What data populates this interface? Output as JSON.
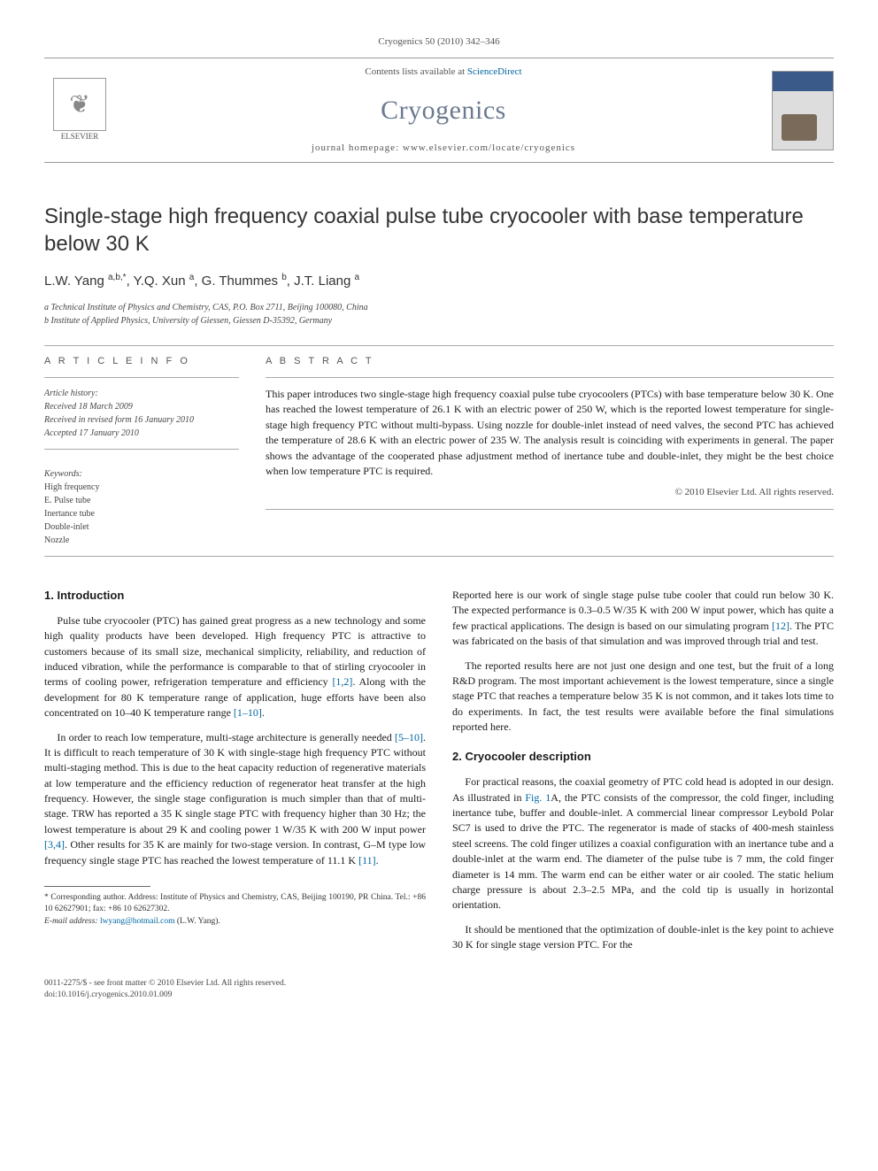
{
  "journal_ref": "Cryogenics 50 (2010) 342–346",
  "masthead": {
    "contents_prefix": "Contents lists available at ",
    "contents_link": "ScienceDirect",
    "journal_name": "Cryogenics",
    "homepage_label": "journal homepage: ",
    "homepage_url": "www.elsevier.com/locate/cryogenics",
    "publisher_name": "ELSEVIER"
  },
  "article": {
    "title": "Single-stage high frequency coaxial pulse tube cryocooler with base temperature below 30 K",
    "authors_html": "L.W. Yang <sup>a,b,*</sup>, Y.Q. Xun <sup>a</sup>, G. Thummes <sup>b</sup>, J.T. Liang <sup>a</sup>",
    "affiliations": [
      "a Technical Institute of Physics and Chemistry, CAS, P.O. Box 2711, Beijing 100080, China",
      "b Institute of Applied Physics, University of Giessen, Giessen D-35392, Germany"
    ]
  },
  "info": {
    "heading": "A R T I C L E   I N F O",
    "history_label": "Article history:",
    "received": "Received 18 March 2009",
    "revised": "Received in revised form 16 January 2010",
    "accepted": "Accepted 17 January 2010",
    "keywords_label": "Keywords:",
    "keywords": [
      "High frequency",
      "E. Pulse tube",
      "Inertance tube",
      "Double-inlet",
      "Nozzle"
    ]
  },
  "abstract": {
    "heading": "A B S T R A C T",
    "text": "This paper introduces two single-stage high frequency coaxial pulse tube cryocoolers (PTCs) with base temperature below 30 K. One has reached the lowest temperature of 26.1 K with an electric power of 250 W, which is the reported lowest temperature for single-stage high frequency PTC without multi-bypass. Using nozzle for double-inlet instead of need valves, the second PTC has achieved the temperature of 28.6 K with an electric power of 235 W. The analysis result is coinciding with experiments in general. The paper shows the advantage of the cooperated phase adjustment method of inertance tube and double-inlet, they might be the best choice when low temperature PTC is required.",
    "copyright": "© 2010 Elsevier Ltd. All rights reserved."
  },
  "body": {
    "left": {
      "section_num": "1.",
      "section_title": "Introduction",
      "p1": "Pulse tube cryocooler (PTC) has gained great progress as a new technology and some high quality products have been developed. High frequency PTC is attractive to customers because of its small size, mechanical simplicity, reliability, and reduction of induced vibration, while the performance is comparable to that of stirling cryocooler in terms of cooling power, refrigeration temperature and efficiency [1,2]. Along with the development for 80 K temperature range of application, huge efforts have been also concentrated on 10–40 K temperature range [1–10].",
      "p2": "In order to reach low temperature, multi-stage architecture is generally needed [5–10]. It is difficult to reach temperature of 30 K with single-stage high frequency PTC without multi-staging method. This is due to the heat capacity reduction of regenerative materials at low temperature and the efficiency reduction of regenerator heat transfer at the high frequency. However, the single stage configuration is much simpler than that of multi-stage. TRW has reported a 35 K single stage PTC with frequency higher than 30 Hz; the lowest temperature is about 29 K and cooling power 1 W/35 K with 200 W input power [3,4]. Other results for 35 K are mainly for two-stage version. In contrast, G–M type low frequency single stage PTC has reached the lowest temperature of 11.1 K [11]."
    },
    "right": {
      "p1": "Reported here is our work of single stage pulse tube cooler that could run below 30 K. The expected performance is 0.3–0.5 W/35 K with 200 W input power, which has quite a few practical applications. The design is based on our simulating program [12]. The PTC was fabricated on the basis of that simulation and was improved through trial and test.",
      "p2": "The reported results here are not just one design and one test, but the fruit of a long R&D program. The most important achievement is the lowest temperature, since a single stage PTC that reaches a temperature below 35 K is not common, and it takes lots time to do experiments. In fact, the test results were available before the final simulations reported here.",
      "section_num": "2.",
      "section_title": "Cryocooler description",
      "p3": "For practical reasons, the coaxial geometry of PTC cold head is adopted in our design. As illustrated in Fig. 1A, the PTC consists of the compressor, the cold finger, including inertance tube, buffer and double-inlet. A commercial linear compressor Leybold Polar SC7 is used to drive the PTC. The regenerator is made of stacks of 400-mesh stainless steel screens. The cold finger utilizes a coaxial configuration with an inertance tube and a double-inlet at the warm end. The diameter of the pulse tube is 7 mm, the cold finger diameter is 14 mm. The warm end can be either water or air cooled. The static helium charge pressure is about 2.3–2.5 MPa, and the cold tip is usually in horizontal orientation.",
      "p4": "It should be mentioned that the optimization of double-inlet is the key point to achieve 30 K for single stage version PTC. For the"
    }
  },
  "footnotes": {
    "corresponding": "* Corresponding author. Address: Institute of Physics and Chemistry, CAS, Beijing 100190, PR China. Tel.: +86 10 62627901; fax: +86 10 62627302.",
    "email_label": "E-mail address: ",
    "email": "lwyang@hotmail.com",
    "email_person": " (L.W. Yang)."
  },
  "footer": {
    "issn": "0011-2275/$ - see front matter © 2010 Elsevier Ltd. All rights reserved.",
    "doi": "doi:10.1016/j.cryogenics.2010.01.009"
  },
  "colors": {
    "link": "#0066a1",
    "journal_name": "#6b7a8f",
    "text": "#1a1a1a",
    "muted": "#555555",
    "rule": "#aaaaaa"
  },
  "typography": {
    "title_fontsize_pt": 18,
    "body_fontsize_pt": 9,
    "abstract_fontsize_pt": 9,
    "info_fontsize_pt": 7.5,
    "journal_name_fontsize_pt": 22
  }
}
